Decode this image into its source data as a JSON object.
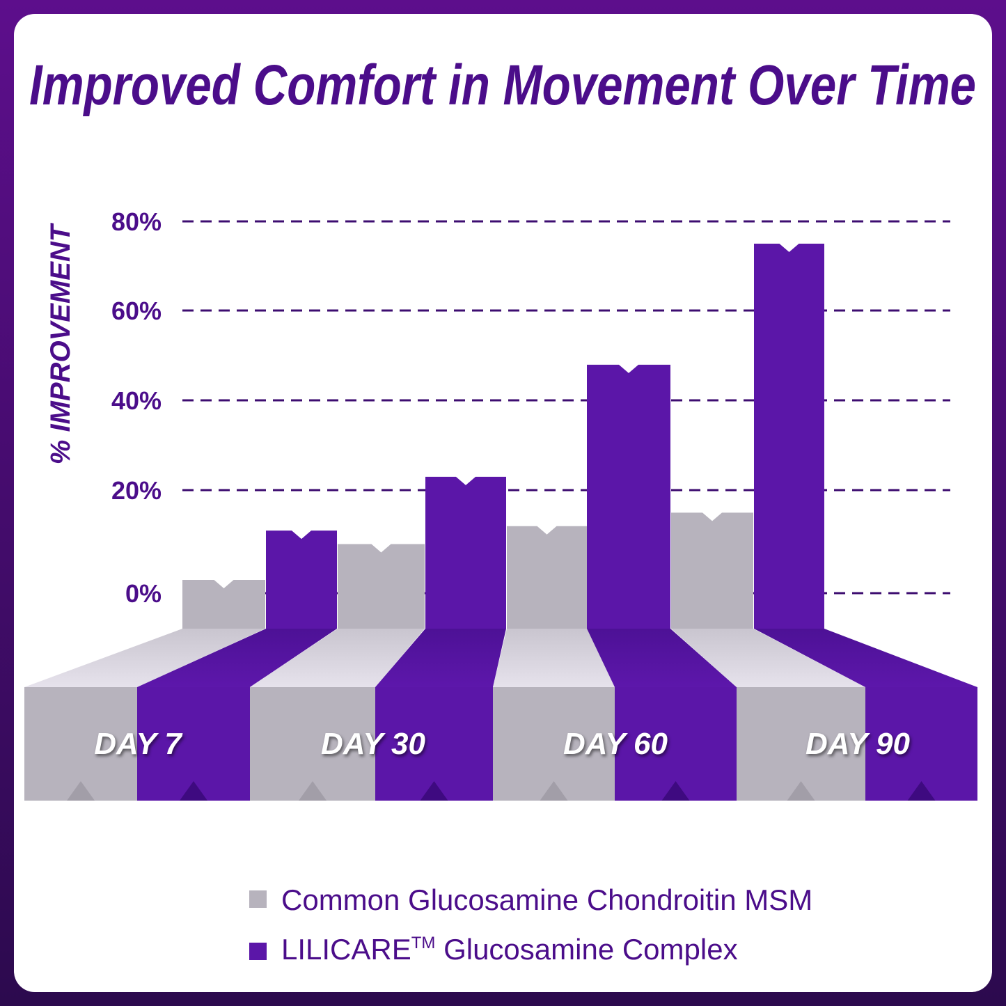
{
  "chart_data": {
    "type": "bar",
    "title": "Improved Comfort in Movement Over Time",
    "ylabel": "% IMPROVEMENT",
    "xlabel": "",
    "categories": [
      "DAY 7",
      "DAY 30",
      "DAY 60",
      "DAY 90"
    ],
    "yticks": [
      "0%",
      "20%",
      "40%",
      "60%",
      "80%"
    ],
    "ylim": [
      0,
      80
    ],
    "grid": true,
    "legend_position": "bottom",
    "series": [
      {
        "name": "Common Glucosamine Chondroitin MSM",
        "values": [
          0,
          8,
          12,
          15
        ],
        "color": "#b7b3bd"
      },
      {
        "name": "LILICARE™ Glucosamine Complex",
        "values": [
          11,
          23,
          48,
          75
        ],
        "color": "#5b16a8"
      }
    ],
    "legend": [
      {
        "label": "Common Glucosamine Chondroitin MSM"
      },
      {
        "brand": "LILICARE",
        "tm": "TM",
        "label": " Glucosamine Complex"
      }
    ]
  }
}
